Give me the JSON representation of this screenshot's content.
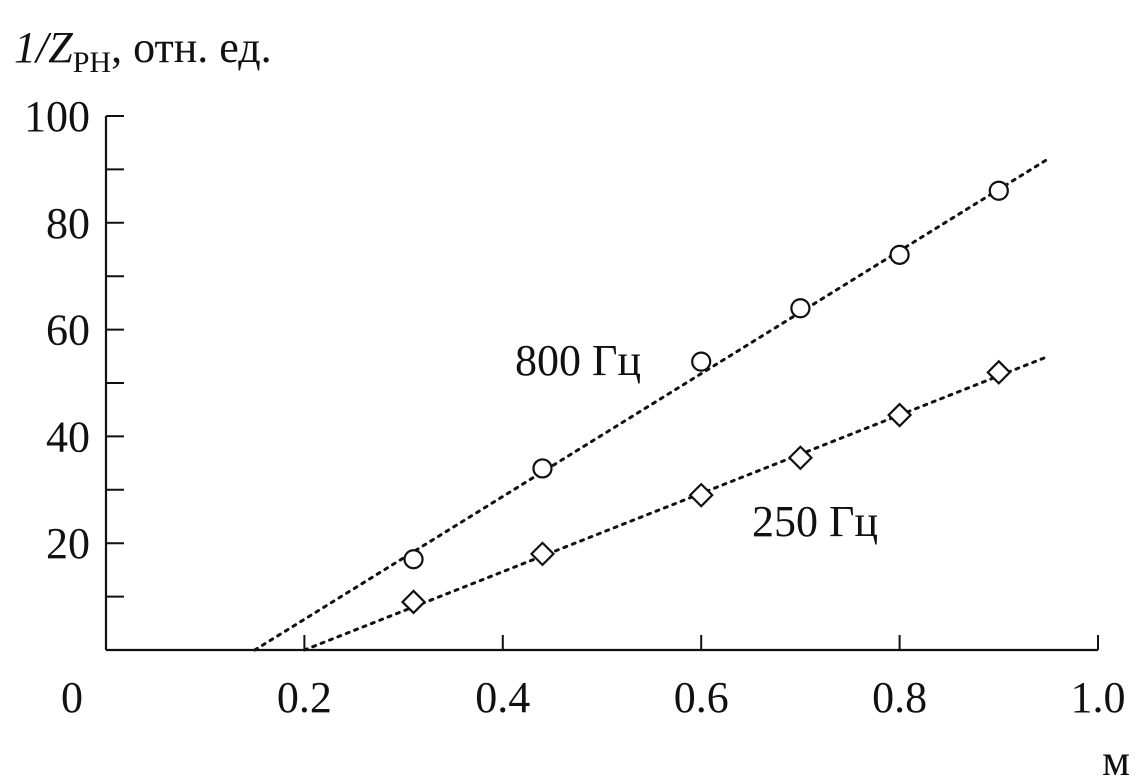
{
  "chart_data": {
    "type": "scatter",
    "title": "",
    "ylabel_main": "1/Z",
    "ylabel_sub": "PH",
    "ylabel_rest": ", отн. ед.",
    "xlabel": "м",
    "xlim": [
      0,
      1.0
    ],
    "ylim": [
      0,
      100
    ],
    "x_ticks": [
      {
        "value": 0,
        "label": "0"
      },
      {
        "value": 0.2,
        "label": "0.2"
      },
      {
        "value": 0.4,
        "label": "0.4"
      },
      {
        "value": 0.6,
        "label": "0.6"
      },
      {
        "value": 0.8,
        "label": "0.8"
      },
      {
        "value": 1.0,
        "label": "1.0"
      }
    ],
    "y_ticks": [
      {
        "value": 20,
        "label": "20"
      },
      {
        "value": 40,
        "label": "40"
      },
      {
        "value": 60,
        "label": "60"
      },
      {
        "value": 80,
        "label": "80"
      },
      {
        "value": 100,
        "label": "100"
      }
    ],
    "y_minor_ticks": [
      10,
      30,
      50,
      70,
      90
    ],
    "grid": false,
    "series": [
      {
        "name": "800 Гц",
        "marker": "circle",
        "points": [
          [
            0.31,
            17
          ],
          [
            0.44,
            34
          ],
          [
            0.6,
            54
          ],
          [
            0.7,
            64
          ],
          [
            0.8,
            74
          ],
          [
            0.9,
            86
          ]
        ],
        "fit_line": [
          [
            0.15,
            0
          ],
          [
            0.95,
            92
          ]
        ]
      },
      {
        "name": "250 Гц",
        "marker": "diamond",
        "points": [
          [
            0.31,
            9
          ],
          [
            0.44,
            18
          ],
          [
            0.6,
            29
          ],
          [
            0.7,
            36
          ],
          [
            0.8,
            44
          ],
          [
            0.9,
            52
          ]
        ],
        "fit_line": [
          [
            0.2,
            0
          ],
          [
            0.95,
            55
          ]
        ]
      }
    ]
  }
}
